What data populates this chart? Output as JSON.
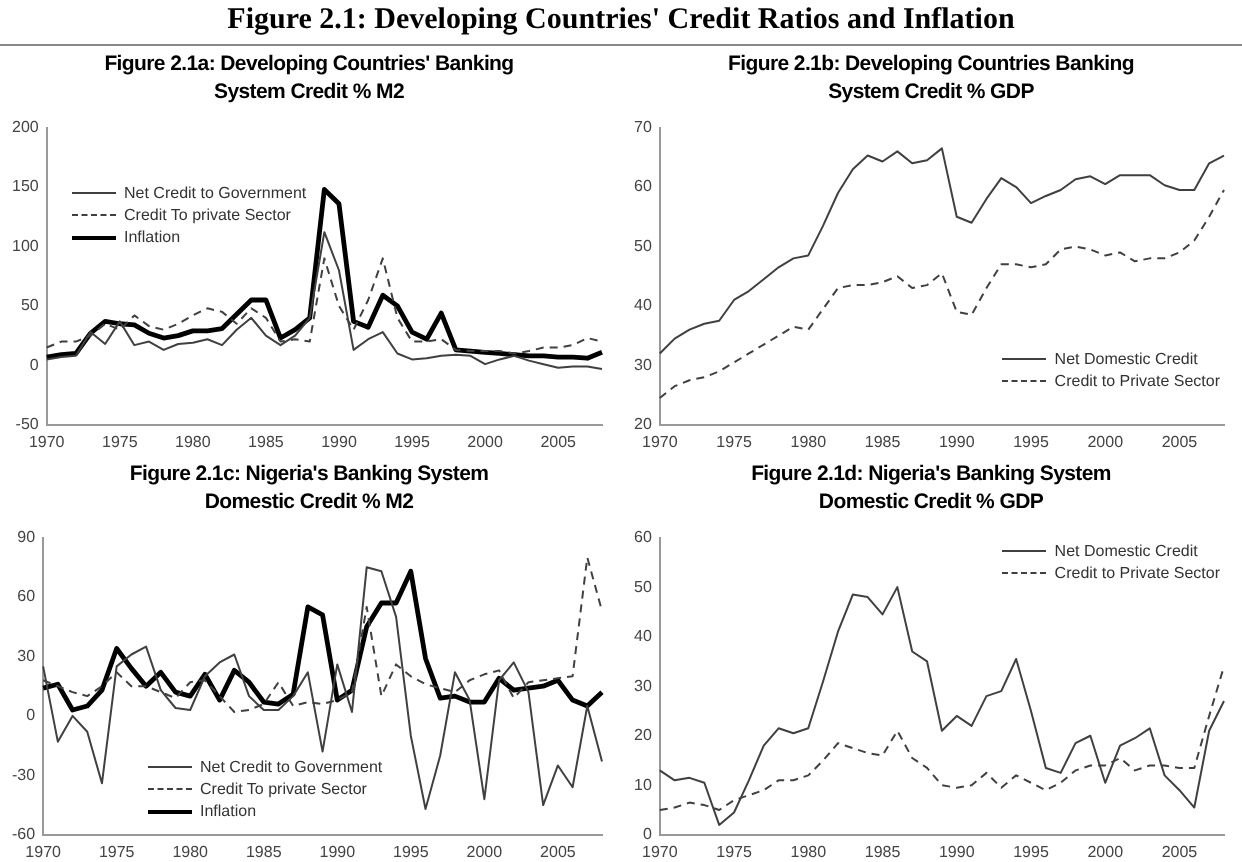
{
  "chart_data": [
    {
      "type": "line",
      "title": "Figure 2.1a: Developing Countries' Banking System Credit % M2",
      "annotations": [
        "Figure 2.1: Developing Countries' Credit Ratios and Inflation"
      ],
      "categories": [
        "1970",
        null,
        null,
        null,
        null,
        "1975",
        null,
        null,
        null,
        null,
        "1980",
        null,
        null,
        null,
        null,
        "1985",
        null,
        null,
        null,
        null,
        "1990",
        null,
        null,
        null,
        null,
        "1995",
        null,
        null,
        null,
        null,
        "2000",
        null,
        null,
        null,
        null,
        "2005",
        null,
        null,
        null
      ],
      "series": [
        {
          "name": "Net Credit to Government",
          "color": "#404040",
          "line_style": "solid",
          "values": [
            5,
            7,
            8,
            28,
            18,
            37,
            17,
            20,
            13,
            18,
            19,
            22,
            17,
            30,
            40,
            25,
            17,
            25,
            40,
            112,
            80,
            13,
            22,
            28,
            10,
            5,
            6,
            8,
            9,
            8,
            1,
            5,
            8,
            4,
            1,
            -2,
            -1,
            -1,
            -3
          ]
        },
        {
          "name": "Credit To private Sector",
          "color": "#404040",
          "line_style": "dashed",
          "values": [
            15,
            20,
            20,
            25,
            35,
            30,
            42,
            33,
            30,
            35,
            42,
            48,
            45,
            35,
            48,
            40,
            20,
            22,
            20,
            90,
            50,
            30,
            55,
            90,
            40,
            20,
            20,
            22,
            13,
            12,
            12,
            12,
            10,
            12,
            15,
            15,
            17,
            23,
            20
          ]
        },
        {
          "name": "Inflation",
          "color": "#000000",
          "line_style": "solid",
          "values": [
            7,
            9,
            10,
            27,
            37,
            35,
            34,
            27,
            23,
            25,
            29,
            29,
            31,
            43,
            55,
            55,
            23,
            30,
            40,
            148,
            136,
            37,
            32,
            59,
            50,
            28,
            22,
            44,
            13,
            12,
            11,
            10,
            9,
            8,
            8,
            7,
            7,
            6,
            11
          ]
        }
      ],
      "ylim": [
        -50,
        200
      ],
      "yticks": [
        -50,
        0,
        50,
        100,
        150,
        200
      ],
      "legend": "left"
    },
    {
      "type": "line",
      "title": "Figure 2.1b: Developing Countries Banking System Credit % GDP",
      "categories": [
        "1970",
        null,
        null,
        null,
        null,
        "1975",
        null,
        null,
        null,
        null,
        "1980",
        null,
        null,
        null,
        null,
        "1985",
        null,
        null,
        null,
        null,
        "1990",
        null,
        null,
        null,
        null,
        "1995",
        null,
        null,
        null,
        null,
        "2000",
        null,
        null,
        null,
        null,
        "2005",
        null,
        null,
        null
      ],
      "series": [
        {
          "name": "Net Domestic Credit",
          "color": "#404040",
          "line_style": "solid",
          "values": [
            32,
            34.5,
            36,
            37,
            37.5,
            41,
            42.5,
            44.5,
            46.5,
            48,
            48.5,
            53.5,
            59,
            63,
            65.3,
            64.3,
            66,
            64,
            64.5,
            66.5,
            55,
            54,
            58,
            61.5,
            60,
            57.3,
            58.5,
            59.5,
            61.3,
            61.8,
            60.5,
            62,
            62,
            62,
            60.3,
            59.5,
            59.5,
            64,
            65.3
          ]
        },
        {
          "name": "Credit to Private Sector",
          "color": "#404040",
          "line_style": "dashed",
          "values": [
            24.5,
            26.5,
            27.5,
            28,
            29,
            30.5,
            32,
            33.5,
            35,
            36.5,
            36,
            39.5,
            43,
            43.5,
            43.5,
            44,
            45,
            43,
            43.5,
            45.5,
            39,
            38.5,
            43,
            47,
            47,
            46.5,
            47,
            49.5,
            50,
            49.5,
            48.5,
            49,
            47.5,
            48,
            48,
            49,
            51,
            55,
            59.5
          ]
        }
      ],
      "ylim": [
        20,
        70
      ],
      "yticks": [
        20,
        30,
        40,
        50,
        60,
        70
      ],
      "legend": "bottom right"
    },
    {
      "type": "line",
      "title": "Figure 2.1c: Nigeria's Banking System Domestic Credit  % M2",
      "categories": [
        "1970",
        null,
        null,
        null,
        null,
        "1975",
        null,
        null,
        null,
        null,
        "1980",
        null,
        null,
        null,
        null,
        "1985",
        null,
        null,
        null,
        null,
        "1990",
        null,
        null,
        null,
        null,
        "1995",
        null,
        null,
        null,
        null,
        "2000",
        null,
        null,
        null,
        null,
        "2005",
        null,
        null,
        null
      ],
      "series": [
        {
          "name": "Net Credit to Government",
          "color": "#404040",
          "line_style": "solid",
          "values": [
            25,
            -13,
            0,
            -8,
            -34,
            25,
            31,
            35,
            13,
            4,
            3,
            20,
            27,
            31,
            10,
            3,
            3,
            10,
            22,
            -18,
            26,
            2,
            75,
            73,
            50,
            -10,
            -47,
            -20,
            22,
            8,
            -42,
            18,
            27,
            12,
            -45,
            -25,
            -36,
            5,
            -23
          ]
        },
        {
          "name": "Credit To private Sector",
          "color": "#404040",
          "line_style": "dashed",
          "values": [
            18,
            15,
            12,
            10,
            15,
            22,
            15,
            15,
            12,
            9,
            17,
            18,
            10,
            2,
            3,
            6,
            17,
            5,
            7,
            6,
            8,
            12,
            55,
            10,
            26,
            20,
            16,
            14,
            12,
            18,
            21,
            23,
            9,
            17,
            18,
            19,
            20,
            80,
            53
          ]
        },
        {
          "name": "Inflation",
          "color": "#000000",
          "line_style": "solid",
          "values": [
            14,
            16,
            3,
            5,
            13,
            34,
            24,
            15,
            22,
            12,
            10,
            21,
            8,
            23,
            17,
            7,
            6,
            11,
            55,
            51,
            8,
            13,
            45,
            57,
            57,
            73,
            29,
            9,
            10,
            7,
            7,
            19,
            13,
            14,
            15,
            18,
            8,
            5,
            12
          ]
        }
      ],
      "ylim": [
        -60,
        90
      ],
      "yticks": [
        -60,
        -30,
        0,
        30,
        60,
        90
      ],
      "legend": "bottom left"
    },
    {
      "type": "line",
      "title": "Figure 2.1d: Nigeria's Banking System Domestic Credit % GDP",
      "categories": [
        "1970",
        null,
        null,
        null,
        null,
        "1975",
        null,
        null,
        null,
        null,
        "1980",
        null,
        null,
        null,
        null,
        "1985",
        null,
        null,
        null,
        null,
        "1990",
        null,
        null,
        null,
        null,
        "1995",
        null,
        null,
        null,
        null,
        "2000",
        null,
        null,
        null,
        null,
        "2005",
        null,
        null,
        null
      ],
      "series": [
        {
          "name": "Net Domestic Credit",
          "color": "#404040",
          "line_style": "solid",
          "values": [
            13,
            11,
            11.5,
            10.5,
            2,
            4.5,
            11,
            18,
            21.5,
            20.5,
            21.5,
            31,
            41,
            48.5,
            48,
            44.5,
            50,
            37,
            35,
            21,
            24,
            22,
            28,
            29,
            35.5,
            25,
            13.5,
            12.5,
            18.5,
            20,
            10.5,
            18,
            19.5,
            21.5,
            12,
            9,
            5.5,
            21,
            27
          ]
        },
        {
          "name": "Credit to Private Sector",
          "color": "#404040",
          "line_style": "dashed",
          "values": [
            5,
            5.5,
            6.5,
            6,
            5,
            7,
            8,
            9,
            11,
            11,
            12,
            15,
            18.5,
            17.5,
            16.5,
            16,
            21,
            15.5,
            13.5,
            10,
            9.5,
            10,
            12.5,
            9.5,
            12,
            10.5,
            9,
            10.5,
            13,
            14,
            14,
            15.5,
            13,
            14,
            14,
            13.5,
            13.5,
            24,
            34
          ]
        }
      ],
      "ylim": [
        0,
        60
      ],
      "yticks": [
        0,
        10,
        20,
        30,
        40,
        50,
        60
      ],
      "legend": "top right"
    }
  ]
}
